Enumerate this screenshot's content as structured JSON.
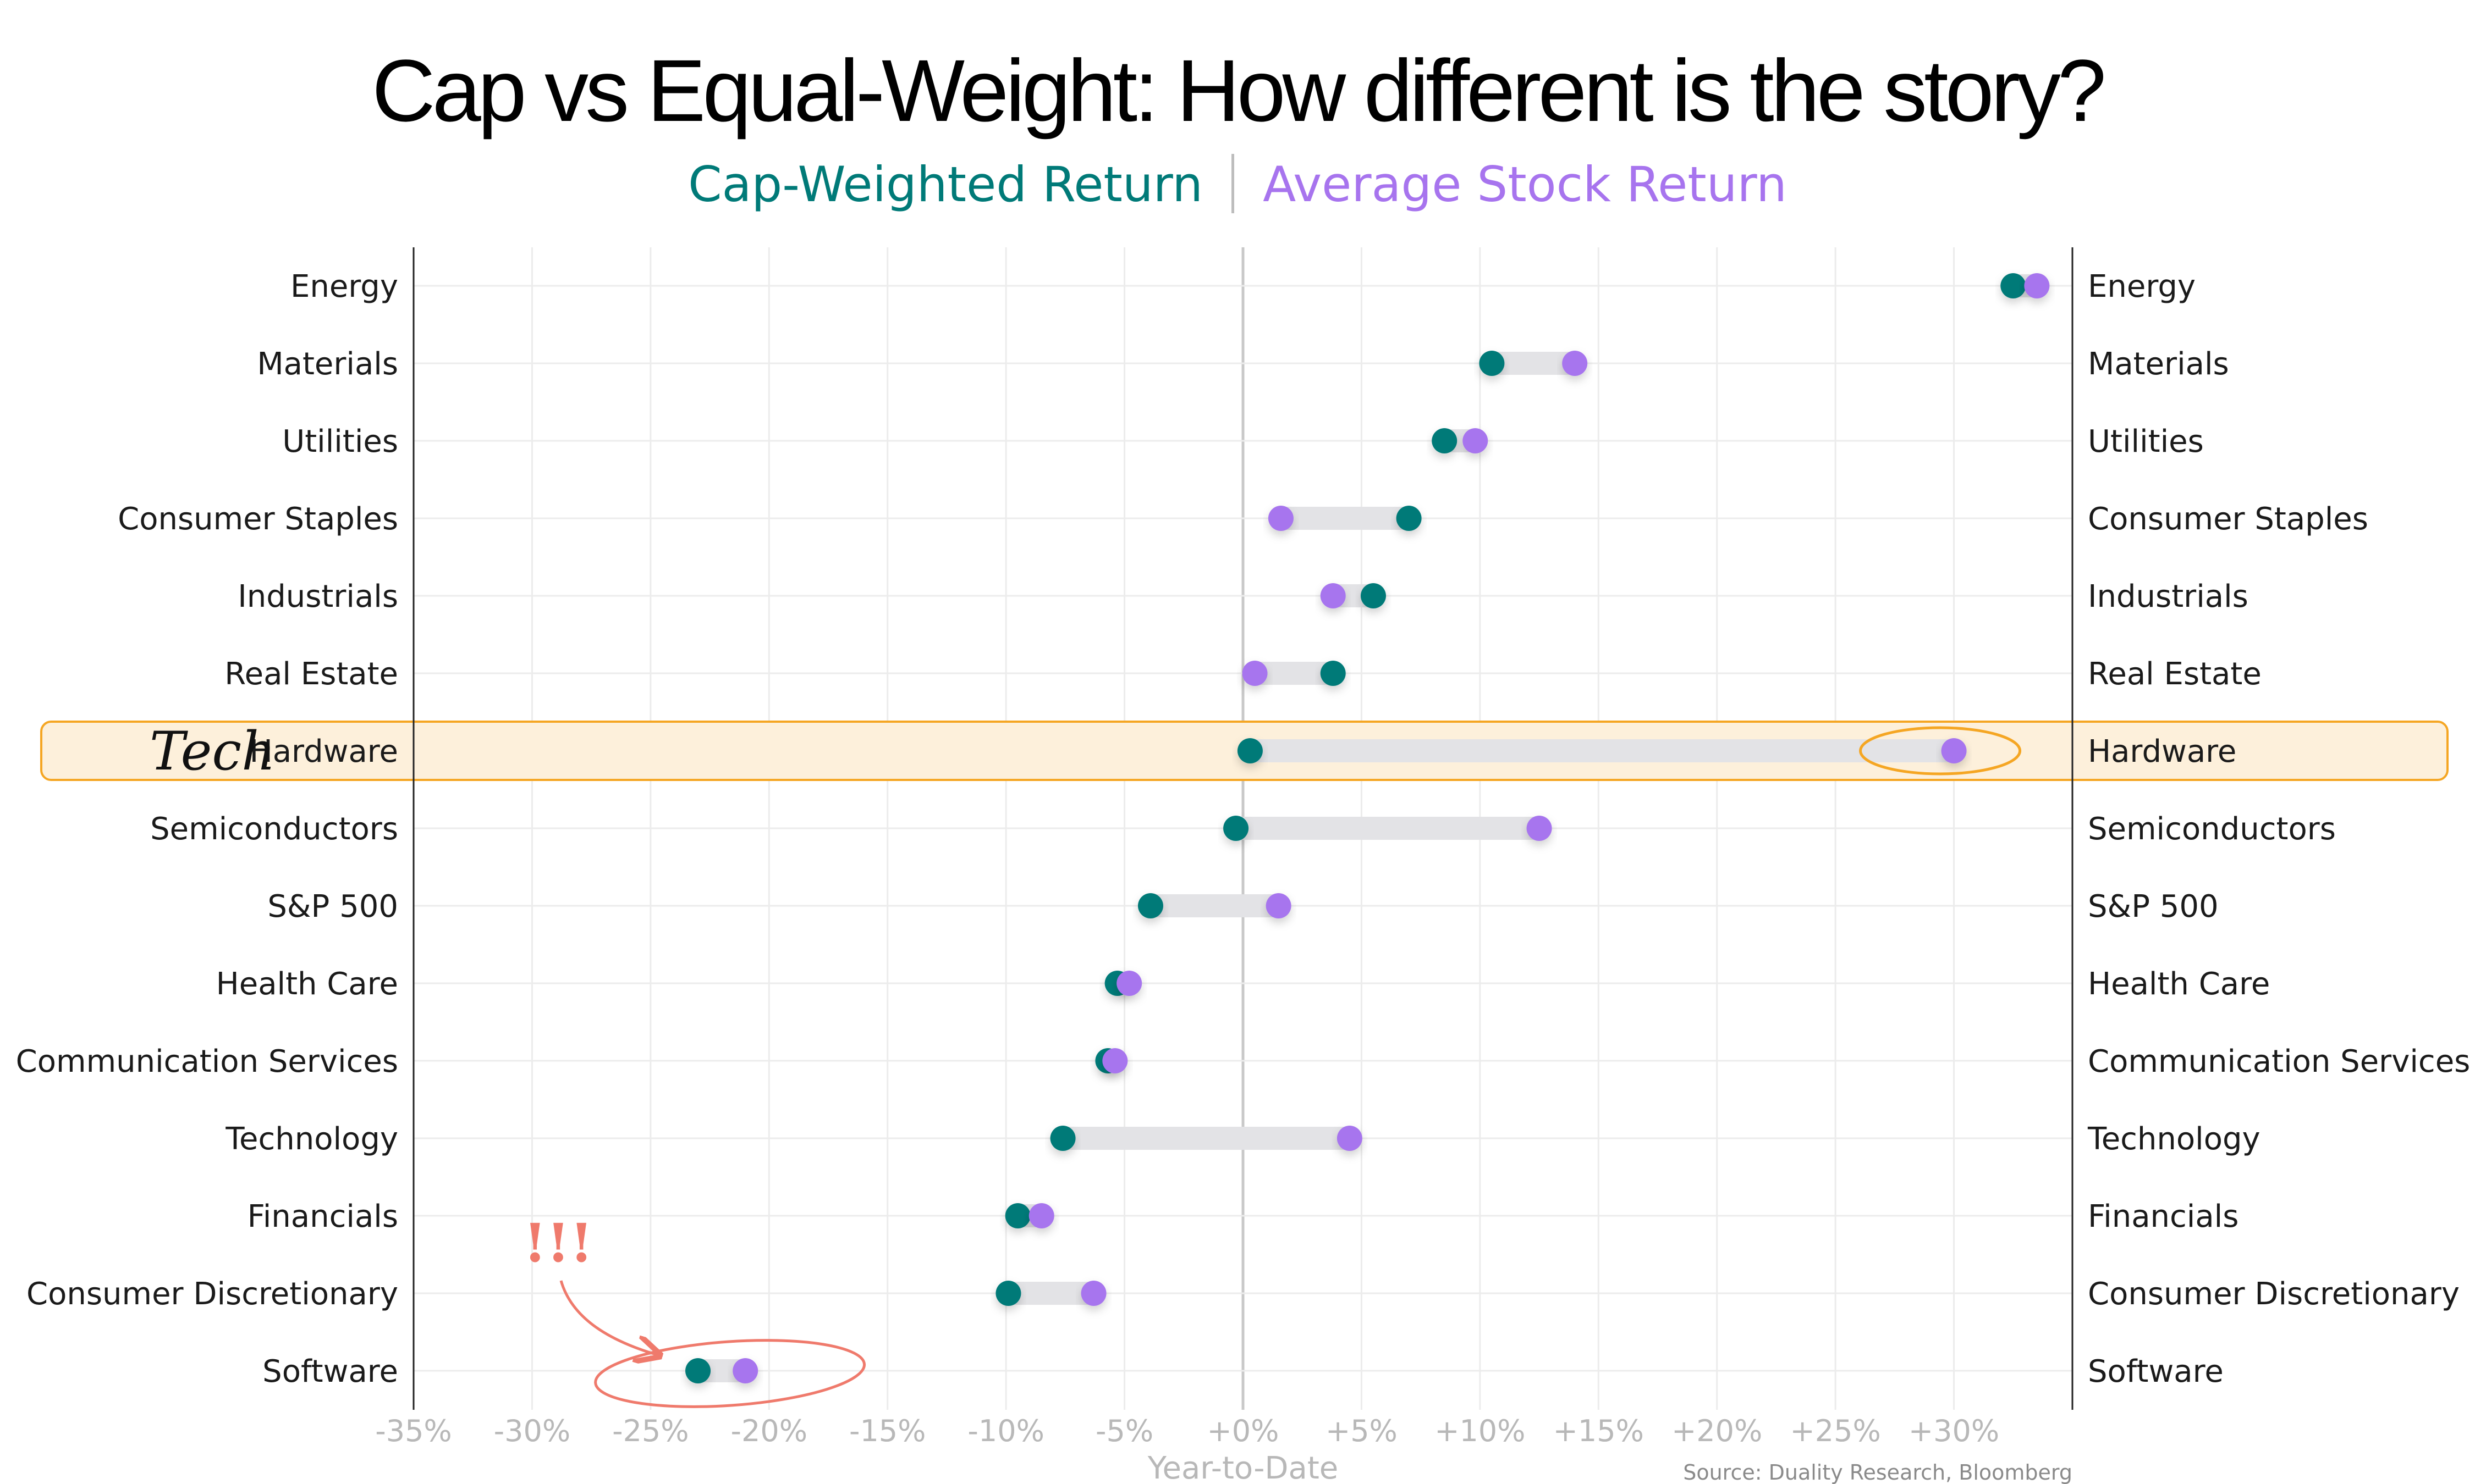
{
  "chart_data": {
    "type": "dumbbell",
    "title": "Cap vs Equal-Weight: How different is the story?",
    "legend": {
      "position": "top-center"
    },
    "series": [
      {
        "name": "Cap-Weighted Return",
        "color": "#007a78",
        "values": [
          32.5,
          10.5,
          8.5,
          7.0,
          5.5,
          3.8,
          0.3,
          -0.3,
          -3.9,
          -5.3,
          -5.7,
          -7.6,
          -9.5,
          -9.9,
          -23.0
        ]
      },
      {
        "name": "Average Stock Return",
        "color": "#a774ee",
        "values": [
          33.5,
          14.0,
          9.8,
          1.6,
          3.8,
          0.5,
          30.0,
          12.5,
          1.5,
          -4.8,
          -5.4,
          4.5,
          -8.5,
          -6.3,
          -21.0
        ]
      }
    ],
    "categories": [
      "Energy",
      "Materials",
      "Utilities",
      "Consumer Staples",
      "Industrials",
      "Real Estate",
      "Hardware",
      "Semiconductors",
      "S&P 500",
      "Health Care",
      "Communication Services",
      "Technology",
      "Financials",
      "Consumer Discretionary",
      "Software"
    ],
    "x_ticks": [
      "-35%",
      "-30%",
      "-25%",
      "-20%",
      "-15%",
      "-10%",
      "-5%",
      "+0%",
      "+5%",
      "+10%",
      "+15%",
      "+20%",
      "+25%",
      "+30%"
    ],
    "xlim": [
      -35,
      35
    ],
    "xlabel": "Year-to-Date",
    "grid": true,
    "highlight": {
      "category": "Hardware",
      "color": "#f5a623",
      "annotation": "Tech"
    },
    "callout": {
      "category": "Software",
      "text": "!!!",
      "color": "#ef7a6c"
    },
    "source": "Source: Duality Research, Bloomberg"
  }
}
